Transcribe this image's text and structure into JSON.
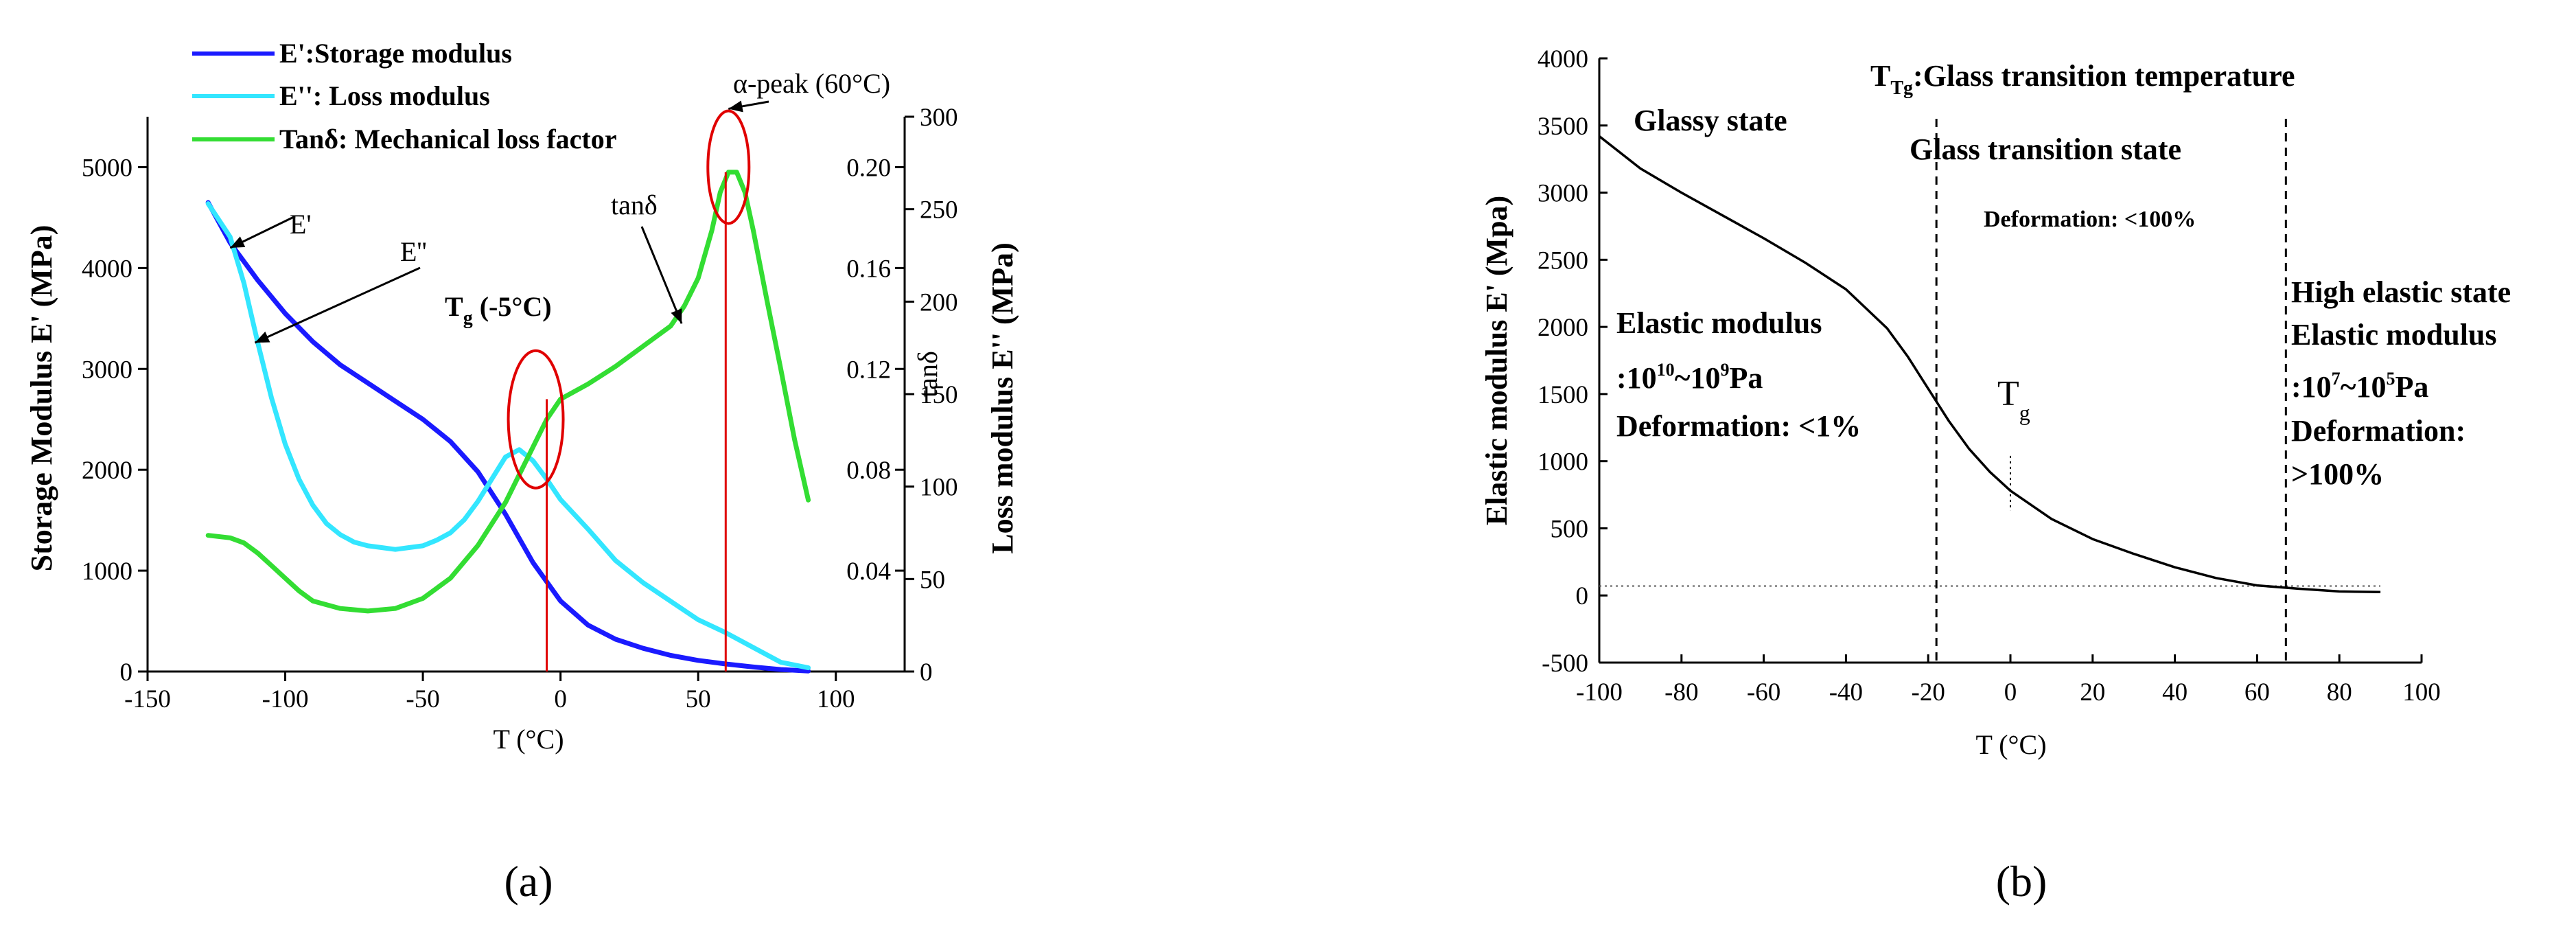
{
  "chart_data": [
    {
      "panel": "(a)",
      "type": "line",
      "title": "",
      "xlabel": "T (°C)",
      "ylabel_left": "Storage Modulus E' (MPa)",
      "ylabel_right_inner": "tanδ",
      "ylabel_right_outer": "Loss modulus E'' (MPa)",
      "xlim": [
        -150,
        125
      ],
      "xticks": [
        -150,
        -100,
        -50,
        0,
        50,
        100
      ],
      "ylim_left": [
        0,
        5500
      ],
      "yticks_left": [
        0,
        1000,
        2000,
        3000,
        4000,
        5000
      ],
      "ylim_tan": [
        0,
        0.22
      ],
      "yticks_tan": [
        "0.04",
        "0.08",
        "0.12",
        "0.16",
        "0.20"
      ],
      "ylim_loss": [
        0,
        300
      ],
      "yticks_loss": [
        0,
        50,
        100,
        150,
        200,
        250,
        300
      ],
      "legend": [
        {
          "label": "E':Storage modulus",
          "color": "#1a1aff"
        },
        {
          "label": "E'': Loss modulus",
          "color": "#33e6ff"
        },
        {
          "label": "Tanδ: Mechanical loss factor",
          "color": "#33dd33"
        }
      ],
      "series": [
        {
          "name": "E'",
          "axis": "left",
          "color": "#1a1aff",
          "x": [
            -128,
            -120,
            -110,
            -100,
            -90,
            -80,
            -70,
            -60,
            -50,
            -40,
            -30,
            -20,
            -10,
            0,
            10,
            20,
            30,
            40,
            50,
            60,
            70,
            80,
            90
          ],
          "y": [
            4650,
            4250,
            3880,
            3550,
            3270,
            3040,
            2860,
            2680,
            2500,
            2280,
            1980,
            1560,
            1080,
            700,
            460,
            320,
            230,
            160,
            110,
            75,
            45,
            20,
            5
          ]
        },
        {
          "name": "E''",
          "axis": "loss",
          "color": "#33e6ff",
          "x": [
            -128,
            -120,
            -115,
            -110,
            -105,
            -100,
            -95,
            -90,
            -85,
            -80,
            -75,
            -70,
            -65,
            -60,
            -55,
            -50,
            -45,
            -40,
            -35,
            -30,
            -25,
            -20,
            -15,
            -10,
            -5,
            0,
            10,
            20,
            30,
            40,
            50,
            60,
            70,
            80,
            90
          ],
          "y": [
            253,
            235,
            210,
            178,
            148,
            123,
            104,
            90,
            80,
            74,
            70,
            68,
            67,
            66,
            67,
            68,
            71,
            75,
            82,
            92,
            104,
            116,
            120,
            114,
            104,
            93,
            77,
            60,
            48,
            38,
            28,
            21,
            13,
            5,
            2
          ]
        },
        {
          "name": "tanδ",
          "axis": "tan",
          "color": "#33dd33",
          "x": [
            -128,
            -120,
            -115,
            -110,
            -105,
            -100,
            -95,
            -90,
            -80,
            -70,
            -60,
            -50,
            -40,
            -30,
            -20,
            -10,
            -5,
            0,
            10,
            20,
            30,
            40,
            45,
            50,
            55,
            58,
            61,
            64,
            67,
            70,
            75,
            80,
            85,
            90
          ],
          "y": [
            0.054,
            0.053,
            0.051,
            0.047,
            0.042,
            0.037,
            0.032,
            0.028,
            0.025,
            0.024,
            0.025,
            0.029,
            0.037,
            0.05,
            0.067,
            0.089,
            0.1,
            0.108,
            0.114,
            0.121,
            0.129,
            0.137,
            0.145,
            0.156,
            0.175,
            0.19,
            0.198,
            0.198,
            0.19,
            0.175,
            0.147,
            0.12,
            0.092,
            0.068
          ]
        }
      ],
      "annotations": [
        {
          "text": "E'",
          "target_x": -120,
          "target_y": 4200
        },
        {
          "text": "E''",
          "target_x": -111,
          "target_y": 3260
        },
        {
          "text": "tanδ",
          "target_x": 44,
          "target_y": 0.138
        },
        {
          "text": "α-peak  (60°C)",
          "target_x": 61,
          "target_y": 0.2
        },
        {
          "text": "Tg (-5°C)",
          "target_x": -9,
          "target_y": 0.1
        }
      ],
      "marker_lines_x": [
        -5,
        60
      ]
    },
    {
      "panel": "(b)",
      "type": "line",
      "title": "",
      "xlabel": "T (°C)",
      "ylabel": "Elastic modulus E' (Mpa)",
      "xlim": [
        -100,
        100
      ],
      "xticks": [
        -100,
        -80,
        -60,
        -40,
        -20,
        0,
        20,
        40,
        60,
        80,
        100
      ],
      "ylim": [
        -500,
        4000
      ],
      "yticks": [
        -500,
        0,
        500,
        1000,
        1500,
        2000,
        2500,
        3000,
        3500,
        4000
      ],
      "series": [
        {
          "name": "E'",
          "color": "#000000",
          "x": [
            -100,
            -90,
            -80,
            -70,
            -60,
            -50,
            -40,
            -30,
            -25,
            -20,
            -15,
            -10,
            -5,
            0,
            10,
            20,
            30,
            40,
            50,
            60,
            70,
            80,
            90
          ],
          "y": [
            3420,
            3180,
            3000,
            2830,
            2660,
            2480,
            2280,
            1990,
            1780,
            1540,
            1300,
            1090,
            920,
            780,
            570,
            420,
            310,
            210,
            130,
            75,
            50,
            30,
            25
          ]
        }
      ],
      "dashed_vertical_x": [
        -18,
        67
      ],
      "dotted_horizontal_y": 70,
      "tg_marker_x": 0,
      "tg_marker_y_range": [
        630,
        1040
      ],
      "labels": {
        "glass_transition_temperature": ":Glass transition temperature",
        "tg_legend": "Tg",
        "glassy_state": "Glassy state",
        "glass_transition_state": "Glass transition state",
        "deformation_mid": "Deformation: <100%",
        "elastic_modulus_left": "Elastic modulus",
        "modulus_range_left": ":1010~109Pa",
        "deformation_left": "Deformation: <1%",
        "tg": "Tg",
        "high_elastic_state": "High elastic state",
        "elastic_modulus_right": "Elastic modulus",
        "modulus_range_right": ":107~105Pa",
        "deformation_right_1": "Deformation:",
        "deformation_right_2": ">100%"
      }
    }
  ],
  "captions": [
    "(a)",
    "(b)"
  ]
}
